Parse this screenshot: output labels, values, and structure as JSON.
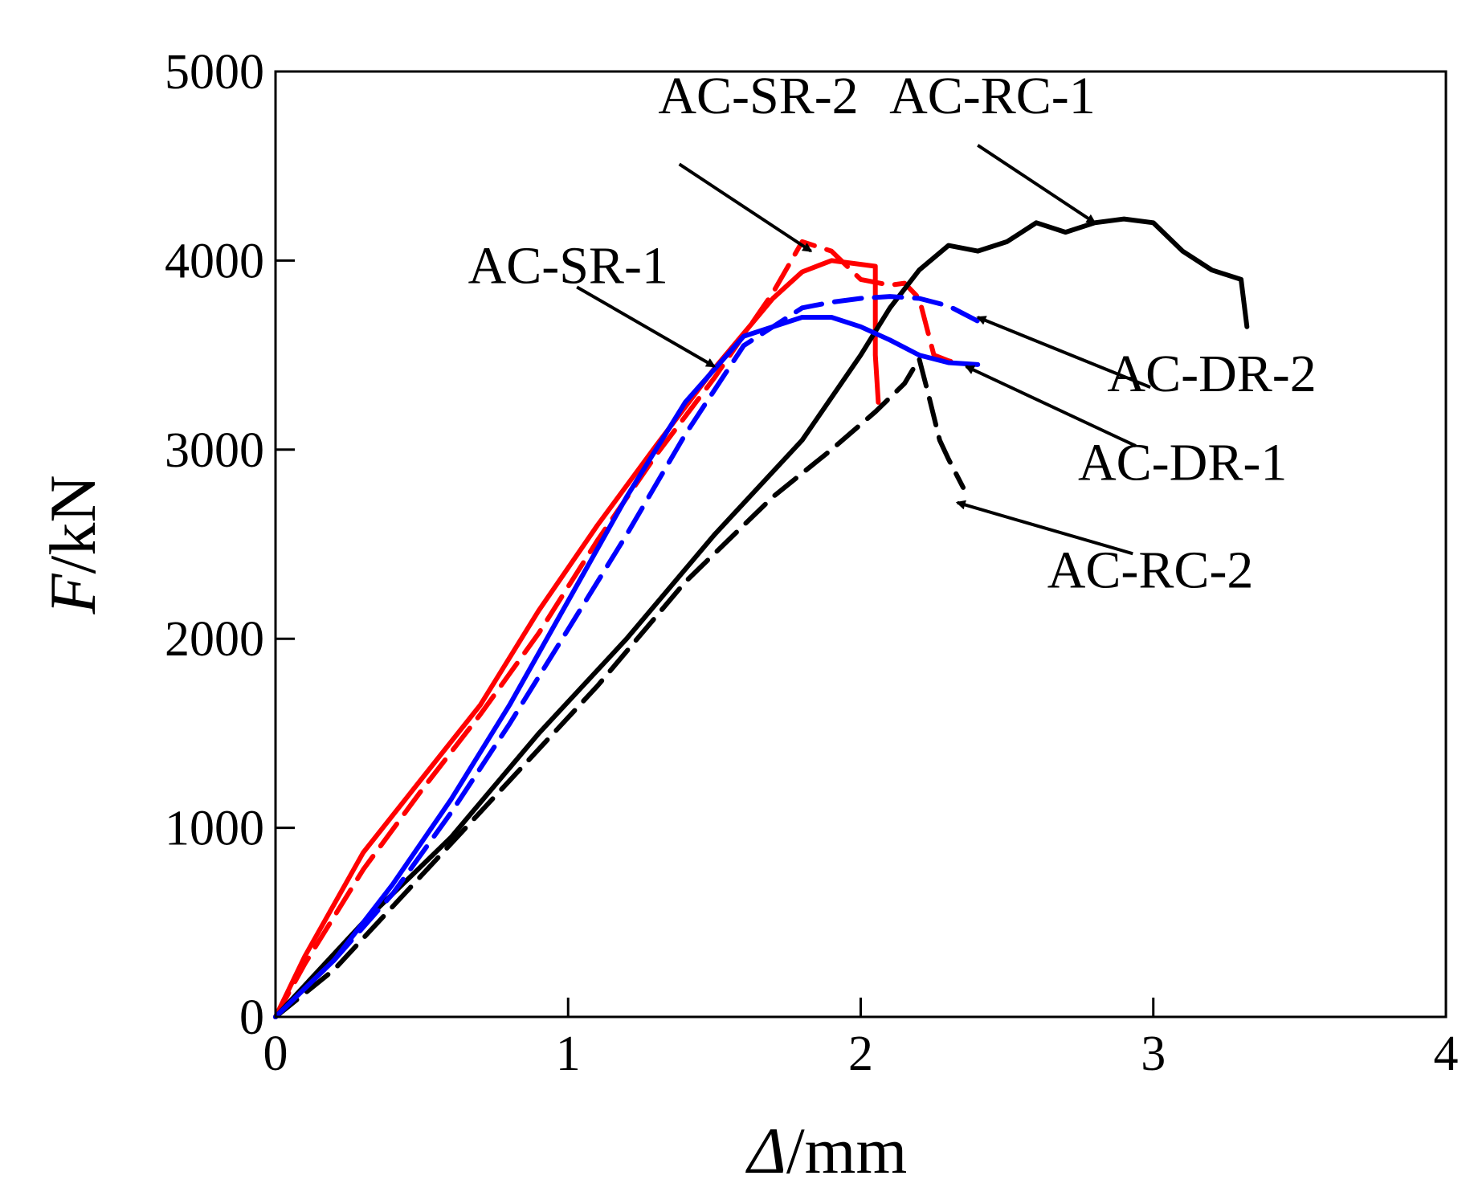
{
  "chart_data": {
    "type": "line",
    "title": "",
    "xlabel": "Δ/mm",
    "xlabel_parts": {
      "symbol": "Δ",
      "unit": "/mm"
    },
    "ylabel": "F/kN",
    "ylabel_parts": {
      "symbol": "F",
      "unit": "/kN"
    },
    "xlim": [
      0,
      4
    ],
    "ylim": [
      0,
      5000
    ],
    "xticks": [
      0,
      1,
      2,
      3,
      4
    ],
    "yticks": [
      0,
      1000,
      2000,
      3000,
      4000,
      5000
    ],
    "xtick_labels": [
      "0",
      "1",
      "2",
      "3",
      "4"
    ],
    "ytick_labels": [
      "0",
      "1000",
      "2000",
      "3000",
      "4000",
      "5000"
    ],
    "grid": false,
    "series": [
      {
        "name": "AC-SR-1",
        "color": "#ff0000",
        "dash": "solid",
        "x": [
          0,
          0.1,
          0.3,
          0.5,
          0.7,
          0.9,
          1.1,
          1.3,
          1.5,
          1.7,
          1.8,
          1.9,
          2.05,
          2.05,
          2.06
        ],
        "y": [
          0,
          320,
          870,
          1260,
          1650,
          2150,
          2600,
          3020,
          3430,
          3800,
          3940,
          4000,
          3970,
          3500,
          3250
        ]
      },
      {
        "name": "AC-SR-2",
        "color": "#ff0000",
        "dash": "dashed",
        "x": [
          0,
          0.1,
          0.3,
          0.5,
          0.7,
          0.9,
          1.1,
          1.3,
          1.5,
          1.7,
          1.8,
          1.9,
          2.0,
          2.1,
          2.15,
          2.2,
          2.25,
          2.3,
          2.35
        ],
        "y": [
          0,
          280,
          780,
          1200,
          1600,
          2030,
          2520,
          2970,
          3380,
          3830,
          4100,
          4050,
          3900,
          3870,
          3880,
          3800,
          3500,
          3470,
          3450
        ]
      },
      {
        "name": "AC-RC-1",
        "color": "#000000",
        "dash": "solid",
        "x": [
          0,
          0.3,
          0.6,
          0.9,
          1.2,
          1.5,
          1.8,
          2.0,
          2.1,
          2.2,
          2.3,
          2.4,
          2.5,
          2.6,
          2.7,
          2.8,
          2.9,
          3.0,
          3.1,
          3.2,
          3.3,
          3.32
        ],
        "y": [
          0,
          500,
          950,
          1500,
          2000,
          2550,
          3050,
          3500,
          3750,
          3950,
          4080,
          4050,
          4100,
          4200,
          4150,
          4200,
          4220,
          4200,
          4050,
          3950,
          3900,
          3650
        ]
      },
      {
        "name": "AC-RC-2",
        "color": "#000000",
        "dash": "dashed",
        "x": [
          0,
          0.2,
          0.5,
          0.8,
          1.1,
          1.4,
          1.7,
          1.9,
          2.05,
          2.15,
          2.2,
          2.23,
          2.27,
          2.3,
          2.35
        ],
        "y": [
          0,
          250,
          750,
          1250,
          1750,
          2300,
          2750,
          3000,
          3200,
          3350,
          3480,
          3300,
          3050,
          2950,
          2800
        ]
      },
      {
        "name": "AC-DR-1",
        "color": "#0000ff",
        "dash": "solid",
        "x": [
          0,
          0.2,
          0.4,
          0.6,
          0.8,
          1.0,
          1.2,
          1.4,
          1.6,
          1.8,
          1.9,
          2.0,
          2.1,
          2.2,
          2.3,
          2.4
        ],
        "y": [
          0,
          300,
          700,
          1150,
          1650,
          2200,
          2750,
          3250,
          3600,
          3700,
          3700,
          3650,
          3580,
          3500,
          3460,
          3450
        ]
      },
      {
        "name": "AC-DR-2",
        "color": "#0000ff",
        "dash": "dashed",
        "x": [
          0,
          0.2,
          0.4,
          0.6,
          0.8,
          1.0,
          1.2,
          1.4,
          1.6,
          1.8,
          1.9,
          2.0,
          2.1,
          2.2,
          2.3,
          2.4
        ],
        "y": [
          0,
          300,
          650,
          1080,
          1550,
          2050,
          2550,
          3080,
          3550,
          3750,
          3780,
          3800,
          3810,
          3800,
          3760,
          3680
        ]
      }
    ],
    "annotations": [
      {
        "label": "AC-SR-2",
        "point": [
          1.83,
          4050
        ],
        "text_anchor": [
          1.65,
          4780
        ],
        "tail": [
          1.38,
          4510
        ]
      },
      {
        "label": "AC-RC-1",
        "point": [
          2.8,
          4200
        ],
        "text_anchor": [
          2.45,
          4780
        ],
        "tail": [
          2.4,
          4610
        ]
      },
      {
        "label": "AC-SR-1",
        "point": [
          1.5,
          3440
        ],
        "text_anchor": [
          1.0,
          3880
        ],
        "tail": [
          1.03,
          3860
        ]
      },
      {
        "label": "AC-DR-2",
        "point": [
          2.4,
          3700
        ],
        "text_anchor": [
          3.2,
          3310
        ],
        "tail": [
          2.99,
          3330
        ]
      },
      {
        "label": "AC-DR-1",
        "point": [
          2.36,
          3440
        ],
        "text_anchor": [
          3.1,
          2840
        ],
        "tail": [
          2.94,
          3020
        ]
      },
      {
        "label": "AC-RC-2",
        "point": [
          2.33,
          2720
        ],
        "text_anchor": [
          2.99,
          2270
        ],
        "tail": [
          2.93,
          2450
        ]
      }
    ]
  }
}
